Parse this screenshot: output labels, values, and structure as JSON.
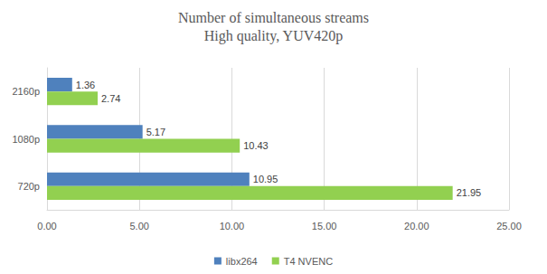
{
  "chart_data": {
    "type": "bar",
    "orientation": "horizontal",
    "title": "Number of simultaneous streams",
    "subtitle": "High quality, YUV420p",
    "categories": [
      "720p",
      "1080p",
      "2160p"
    ],
    "series": [
      {
        "name": "libx264",
        "color": "#4f81bd",
        "values": [
          10.95,
          5.17,
          1.36
        ]
      },
      {
        "name": "T4 NVENC",
        "color": "#92d050",
        "values": [
          21.95,
          10.43,
          2.74
        ]
      }
    ],
    "xlim": [
      0,
      25
    ],
    "xticks": [
      {
        "value": 0,
        "label": "0.00"
      },
      {
        "value": 5,
        "label": "5.00"
      },
      {
        "value": 10,
        "label": "10.00"
      },
      {
        "value": 15,
        "label": "15.00"
      },
      {
        "value": 20,
        "label": "20.00"
      },
      {
        "value": 25,
        "label": "25.00"
      }
    ],
    "grid": true,
    "legend": "bottom",
    "data_labels": true
  }
}
